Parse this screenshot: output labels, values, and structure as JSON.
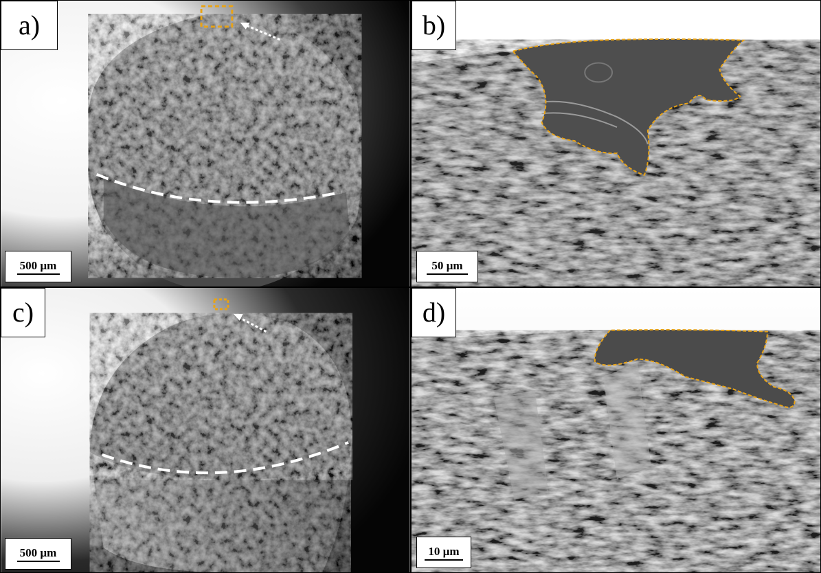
{
  "panels": {
    "a": {
      "label": "a)",
      "scale": "500 µm"
    },
    "b": {
      "label": "b)",
      "scale": "50 µm"
    },
    "c": {
      "label": "c)",
      "scale": "500 µm"
    },
    "d": {
      "label": "d)",
      "scale": "10 µm"
    }
  },
  "colors": {
    "highlight": "#e8a317",
    "marker": "#ffffff",
    "background_bright": "#ffffff",
    "background_dark": "#050505",
    "fracture": "#6e6e6e"
  }
}
